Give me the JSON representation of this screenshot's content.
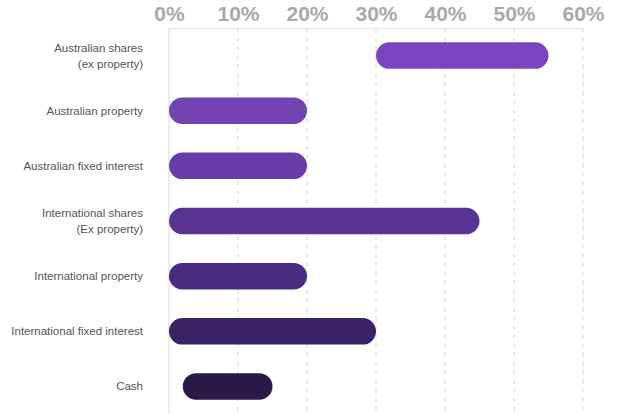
{
  "chart_data": {
    "type": "bar",
    "orientation": "horizontal",
    "categories": [
      "Australian shares (ex property)",
      "Australian property",
      "Australian fixed interest",
      "International shares (Ex property)",
      "International property",
      "International fixed interest",
      "Cash"
    ],
    "values": [
      [
        30,
        55
      ],
      [
        0,
        20
      ],
      [
        0,
        20
      ],
      [
        0,
        45
      ],
      [
        0,
        20
      ],
      [
        0,
        30
      ],
      [
        2,
        15
      ]
    ],
    "colors": [
      "#7a46bf",
      "#7143b3",
      "#683daa",
      "#583393",
      "#4b2b80",
      "#3c2267",
      "#2a1846"
    ],
    "xlim": [
      0,
      60
    ],
    "xticks": [
      {
        "value": 0,
        "label": "0%"
      },
      {
        "value": 10,
        "label": "10%"
      },
      {
        "value": 20,
        "label": "20%"
      },
      {
        "value": 30,
        "label": "30%"
      },
      {
        "value": 40,
        "label": "40%"
      },
      {
        "value": 50,
        "label": "50%"
      },
      {
        "value": 60,
        "label": "60%"
      }
    ],
    "grid": true
  }
}
